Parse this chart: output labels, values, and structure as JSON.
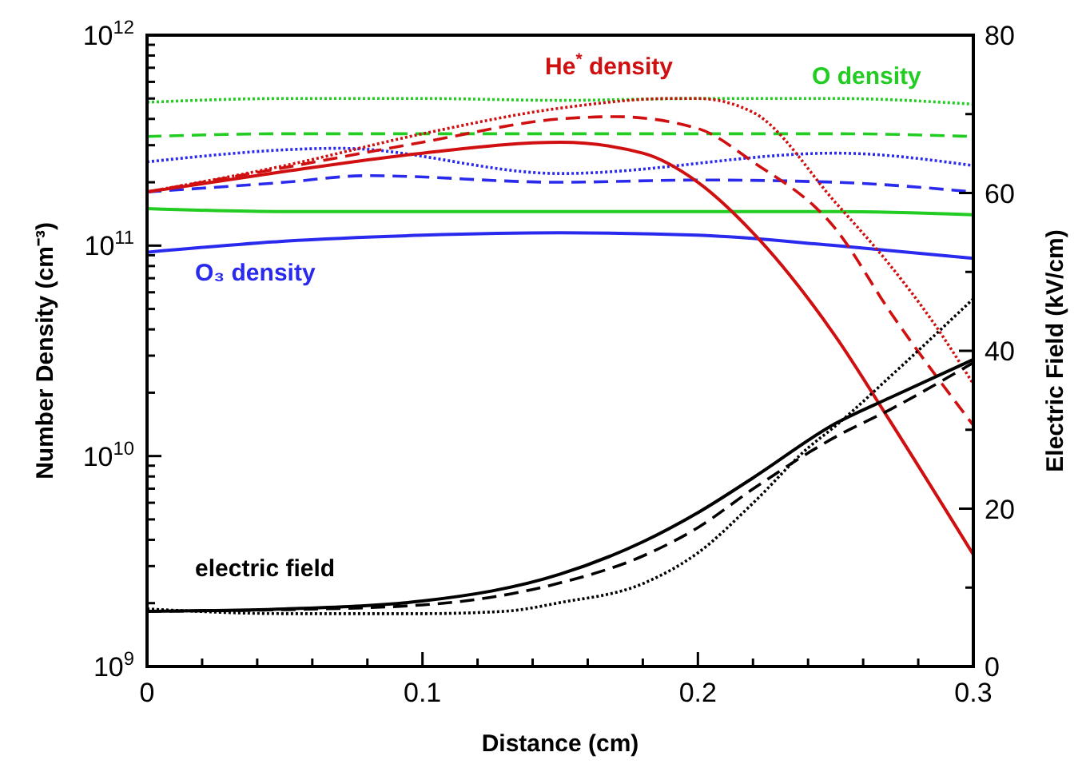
{
  "chart_data": {
    "type": "line",
    "xlabel": "Distance (cm)",
    "ylabel": "Number Density (cm⁻³)",
    "y2label": "Electric Field (kV/cm)",
    "log": "y",
    "xlim": [
      0,
      0.3
    ],
    "xticks": [
      0,
      {
        "value": 0.02,
        "label": null
      },
      {
        "value": 0.04,
        "label": null
      },
      {
        "value": 0.06,
        "label": null
      },
      {
        "value": 0.08,
        "label": null
      },
      0.1,
      {
        "value": 0.12,
        "label": null
      },
      {
        "value": 0.14,
        "label": null
      },
      {
        "value": 0.16,
        "label": null
      },
      {
        "value": 0.18,
        "label": null
      },
      0.2,
      {
        "value": 0.22,
        "label": null
      },
      {
        "value": 0.24,
        "label": null
      },
      {
        "value": 0.26,
        "label": null
      },
      {
        "value": 0.28,
        "label": null
      },
      0.3
    ],
    "ylim": [
      1000000000.0,
      1000000000000.0
    ],
    "yticks": [
      {
        "value": 1000000000.0,
        "label": "10$^{9}$"
      },
      {
        "value": 2000000000.0,
        "label": null
      },
      {
        "value": 3000000000.0,
        "label": null
      },
      {
        "value": 4000000000.0,
        "label": null
      },
      {
        "value": 5000000000.0,
        "label": null
      },
      {
        "value": 6000000000.0,
        "label": null
      },
      {
        "value": 7000000000.0,
        "label": null
      },
      {
        "value": 8000000000.0,
        "label": null
      },
      {
        "value": 9000000000.0,
        "label": null
      },
      {
        "value": 10000000000.0,
        "label": "10$^{10}$"
      },
      {
        "value": 20000000000.0,
        "label": null
      },
      {
        "value": 30000000000.0,
        "label": null
      },
      {
        "value": 40000000000.0,
        "label": null
      },
      {
        "value": 50000000000.0,
        "label": null
      },
      {
        "value": 60000000000.0,
        "label": null
      },
      {
        "value": 70000000000.0,
        "label": null
      },
      {
        "value": 80000000000.0,
        "label": null
      },
      {
        "value": 90000000000.0,
        "label": null
      },
      {
        "value": 100000000000.0,
        "label": "10$^{11}$"
      },
      {
        "value": 200000000000.0,
        "label": null
      },
      {
        "value": 300000000000.0,
        "label": null
      },
      {
        "value": 400000000000.0,
        "label": null
      },
      {
        "value": 500000000000.0,
        "label": null
      },
      {
        "value": 600000000000.0,
        "label": null
      },
      {
        "value": 700000000000.0,
        "label": null
      },
      {
        "value": 800000000000.0,
        "label": null
      },
      {
        "value": 900000000000.0,
        "label": null
      },
      {
        "value": 1000000000000.0,
        "label": "10$^{12}$"
      }
    ],
    "y2lim": [
      0,
      80
    ],
    "y2ticks": [
      0,
      {
        "value": 10,
        "label": null
      },
      20,
      {
        "value": 30,
        "label": null
      },
      40,
      {
        "value": 50,
        "label": null
      },
      60,
      {
        "value": 70,
        "label": null
      },
      80
    ],
    "series": [
      {
        "color": "#22cc22",
        "line_style": "dotted",
        "x": [
          0,
          0.05,
          0.1,
          0.15,
          0.2,
          0.25,
          0.3
        ],
        "values": [
          480000000000.0,
          500000000000.0,
          500000000000.0,
          490000000000.0,
          500000000000.0,
          500000000000.0,
          470000000000.0
        ]
      },
      {
        "color": "#22cc22",
        "line_style": "dashed",
        "x": [
          0,
          0.05,
          0.1,
          0.15,
          0.2,
          0.25,
          0.3
        ],
        "values": [
          330000000000.0,
          340000000000.0,
          340000000000.0,
          340000000000.0,
          340000000000.0,
          340000000000.0,
          330000000000.0
        ]
      },
      {
        "name": "O density",
        "color": "#22cc22",
        "line_style": "solid",
        "x": [
          0,
          0.05,
          0.1,
          0.15,
          0.2,
          0.25,
          0.3
        ],
        "values": [
          150000000000.0,
          145000000000.0,
          145000000000.0,
          145000000000.0,
          145000000000.0,
          145000000000.0,
          140000000000.0
        ]
      },
      {
        "color": "#2a2aee",
        "line_style": "dotted",
        "x": [
          0,
          0.07,
          0.15,
          0.25,
          0.3
        ],
        "values": [
          250000000000.0,
          290000000000.0,
          220000000000.0,
          275000000000.0,
          240000000000.0
        ]
      },
      {
        "color": "#2a2aee",
        "line_style": "dashed",
        "x": [
          0,
          0.05,
          0.08,
          0.15,
          0.2,
          0.25,
          0.3
        ],
        "values": [
          180000000000.0,
          200000000000.0,
          215000000000.0,
          200000000000.0,
          205000000000.0,
          200000000000.0,
          180000000000.0
        ]
      },
      {
        "name": "O₃ density",
        "color": "#2a2aee",
        "line_style": "solid",
        "x": [
          0,
          0.05,
          0.1,
          0.15,
          0.2,
          0.25,
          0.3
        ],
        "values": [
          93000000000.0,
          105000000000.0,
          112000000000.0,
          115000000000.0,
          112000000000.0,
          100000000000.0,
          87000000000.0
        ]
      },
      {
        "color": "#d01010",
        "line_style": "dotted",
        "x": [
          0,
          0.05,
          0.1,
          0.15,
          0.19,
          0.2,
          0.22,
          0.25,
          0.27,
          0.285,
          0.3
        ],
        "values": [
          180000000000.0,
          240000000000.0,
          340000000000.0,
          450000000000.0,
          500000000000.0,
          500000000000.0,
          430000000000.0,
          160000000000.0,
          80000000000.0,
          44000000000.0,
          22000000000.0
        ]
      },
      {
        "color": "#d01010",
        "line_style": "dashed",
        "x": [
          0,
          0.05,
          0.1,
          0.15,
          0.17,
          0.2,
          0.22,
          0.25,
          0.27,
          0.3
        ],
        "values": [
          180000000000.0,
          235000000000.0,
          310000000000.0,
          400000000000.0,
          410000000000.0,
          360000000000.0,
          250000000000.0,
          120000000000.0,
          48000000000.0,
          14000000000.0
        ]
      },
      {
        "name": "He$^{*}$ density",
        "color": "#d01010",
        "line_style": "solid",
        "x": [
          0,
          0.05,
          0.1,
          0.15,
          0.18,
          0.2,
          0.22,
          0.25,
          0.27,
          0.3
        ],
        "values": [
          180000000000.0,
          225000000000.0,
          275000000000.0,
          310000000000.0,
          275000000000.0,
          200000000000.0,
          115000000000.0,
          37000000000.0,
          14500000000.0,
          3400000000.0
        ]
      },
      {
        "color": "#000000",
        "line_style": "dotted",
        "axis": "y2",
        "x": [
          0,
          0.05,
          0.1,
          0.13,
          0.15,
          0.18,
          0.2,
          0.22,
          0.24,
          0.25,
          0.27,
          0.3
        ],
        "values": [
          7.3,
          6.7,
          6.7,
          7,
          8.1,
          10.5,
          14.4,
          20.7,
          27.7,
          30.5,
          36.8,
          46.6
        ]
      },
      {
        "color": "#000000",
        "line_style": "dashed",
        "axis": "y2",
        "x": [
          0,
          0.05,
          0.1,
          0.15,
          0.18,
          0.2,
          0.22,
          0.25,
          0.27,
          0.3
        ],
        "values": [
          7,
          7.2,
          7.8,
          10.6,
          14,
          17.6,
          22.5,
          29.1,
          32.6,
          38.5
        ]
      },
      {
        "name": "electric field",
        "color": "#000000",
        "line_style": "solid",
        "axis": "y2",
        "x": [
          0,
          0.05,
          0.1,
          0.15,
          0.18,
          0.2,
          0.22,
          0.25,
          0.27,
          0.3
        ],
        "values": [
          7,
          7.3,
          8.3,
          11.7,
          15.8,
          19.5,
          23.9,
          30.8,
          34.1,
          38.9
        ]
      }
    ]
  }
}
